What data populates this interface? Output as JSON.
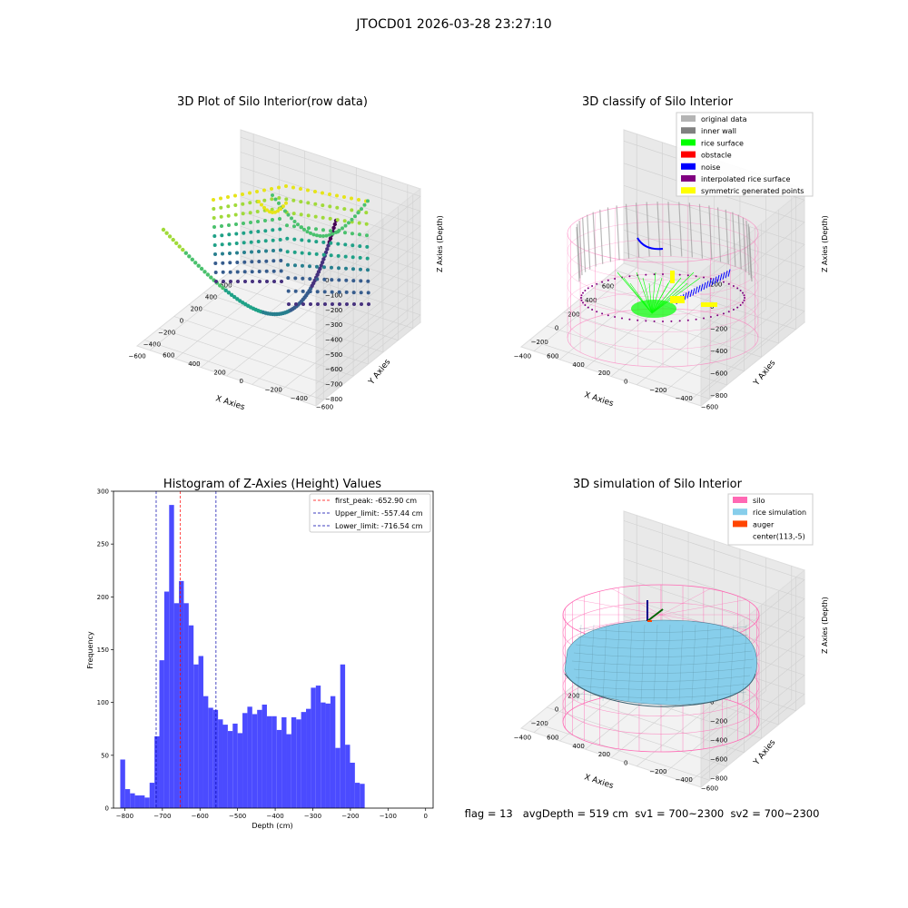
{
  "page": {
    "title": "JTOCD01 2026-03-28 23:27:10",
    "footer": "flag = 13   avgDepth = 519 cm  sv1 = 700~2300  sv2 = 700~2300"
  },
  "colors": {
    "hist_bar": "#4b4bff",
    "first_peak": "#ff0000",
    "limit_line": "#0000aa",
    "silo": "#ff69b4",
    "rice_sim": "#87ceeb",
    "auger": "#ff4500",
    "original": "#b4b4b4",
    "inner_wall": "#808080",
    "rice_surface": "#00ff00",
    "obstacle": "#ff0000",
    "noise": "#0000ff",
    "interpolated": "#800080",
    "symmetric": "#ffff00",
    "pane": "#eeeeee"
  },
  "chart_data": [
    {
      "type": "scatter",
      "title": "3D Plot of Silo Interior(row data)",
      "xlabel": "X Axies",
      "ylabel": "Y Axies",
      "zlabel": "Z Axies (Depth)",
      "xticks": [
        "−600",
        "−400",
        "−200",
        "0",
        "200",
        "400",
        "600"
      ],
      "yticks": [
        "−600",
        "−400",
        "−200",
        "0",
        "200",
        "400",
        "600"
      ],
      "zticks": [
        "−800",
        "−700",
        "−600",
        "−500",
        "−400",
        "−300",
        "−200",
        "−100",
        "0"
      ],
      "colormap": "viridis",
      "grid": true
    },
    {
      "type": "scatter",
      "title": "3D classify of Silo Interior",
      "xlabel": "X Axies",
      "ylabel": "Y Axies",
      "zlabel": "Z Axies (Depth)",
      "xticks": [
        "−400",
        "−200",
        "0",
        "200",
        "400",
        "600"
      ],
      "yticks": [
        "−600",
        "−400",
        "−200",
        "0",
        "200",
        "400",
        "600"
      ],
      "zticks": [
        "−800",
        "−600",
        "−400",
        "−200",
        "0",
        "200"
      ],
      "legend_position": "top-right",
      "legend": [
        {
          "label": "original data",
          "color": "#b4b4b4"
        },
        {
          "label": "inner wall",
          "color": "#808080"
        },
        {
          "label": "rice surface",
          "color": "#00ff00"
        },
        {
          "label": "obstacle",
          "color": "#ff0000"
        },
        {
          "label": "noise",
          "color": "#0000ff"
        },
        {
          "label": "interpolated rice surface",
          "color": "#800080"
        },
        {
          "label": "symmetric generated points",
          "color": "#ffff00"
        }
      ],
      "grid": true
    },
    {
      "type": "bar",
      "title": "Histogram of Z-Axies (Height) Values",
      "xlabel": "Depth (cm)",
      "ylabel": "Frequency",
      "xlim": [
        -830,
        20
      ],
      "ylim": [
        0,
        300
      ],
      "xticks": [
        -800,
        -700,
        -600,
        -500,
        -400,
        -300,
        -200,
        -100,
        0
      ],
      "yticks": [
        0,
        50,
        100,
        150,
        200,
        250,
        300
      ],
      "bin_width": 13,
      "bin_start": -812,
      "values": [
        46,
        18,
        14,
        12,
        12,
        10,
        24,
        68,
        140,
        205,
        287,
        194,
        215,
        194,
        173,
        136,
        144,
        106,
        95,
        93,
        84,
        79,
        73,
        80,
        71,
        90,
        96,
        89,
        93,
        98,
        87,
        87,
        74,
        86,
        70,
        86,
        84,
        91,
        94,
        114,
        116,
        100,
        99,
        106,
        57,
        136,
        60,
        43,
        24,
        23
      ],
      "lines": [
        {
          "name": "first_peak: -652.90 cm",
          "x": -652.9,
          "color": "#ff0000"
        },
        {
          "name": "Upper_limit: -557.44 cm",
          "x": -557.44,
          "color": "#0000aa"
        },
        {
          "name": "Lower_limit: -716.54 cm",
          "x": -716.54,
          "color": "#0000aa"
        }
      ],
      "legend_position": "top-right",
      "grid": false
    },
    {
      "type": "scatter",
      "title": "3D simulation of Silo Interior",
      "xlabel": "X Axies",
      "ylabel": "Y Axies",
      "zlabel": "Z Axies (Depth)",
      "xticks": [
        "−400",
        "−200",
        "0",
        "200",
        "400",
        "600"
      ],
      "yticks": [
        "−600",
        "−400",
        "−200",
        "0",
        "200",
        "400",
        "600"
      ],
      "zticks": [
        "−800",
        "−600",
        "−400",
        "−200",
        "0",
        "200",
        "400"
      ],
      "legend_position": "top-right",
      "legend": [
        {
          "label": "silo",
          "color": "#ff69b4"
        },
        {
          "label": "rice simulation",
          "color": "#87ceeb"
        },
        {
          "label": "auger",
          "color": "#ff4500"
        },
        {
          "label": "center(113,-5)",
          "color": ""
        }
      ],
      "grid": true
    }
  ]
}
